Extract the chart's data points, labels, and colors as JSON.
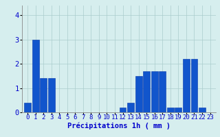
{
  "hours": [
    0,
    1,
    2,
    3,
    4,
    5,
    6,
    7,
    8,
    9,
    10,
    11,
    12,
    13,
    14,
    15,
    16,
    17,
    18,
    19,
    20,
    21,
    22,
    23
  ],
  "values": [
    0.4,
    3.0,
    1.4,
    1.4,
    0,
    0,
    0,
    0,
    0,
    0,
    0,
    0,
    0.2,
    0.4,
    1.5,
    1.7,
    1.7,
    1.7,
    0.2,
    0.2,
    2.2,
    2.2,
    0.2,
    0
  ],
  "bar_color": "#1155cc",
  "bar_edge_color": "#0033aa",
  "background_color": "#d6eeee",
  "grid_color": "#aacccc",
  "xlabel": "Précipitations 1h ( mm )",
  "ylim": [
    0,
    4.4
  ],
  "yticks": [
    0,
    1,
    2,
    3,
    4
  ],
  "xlabel_fontsize": 7.5,
  "tick_fontsize": 6.5
}
